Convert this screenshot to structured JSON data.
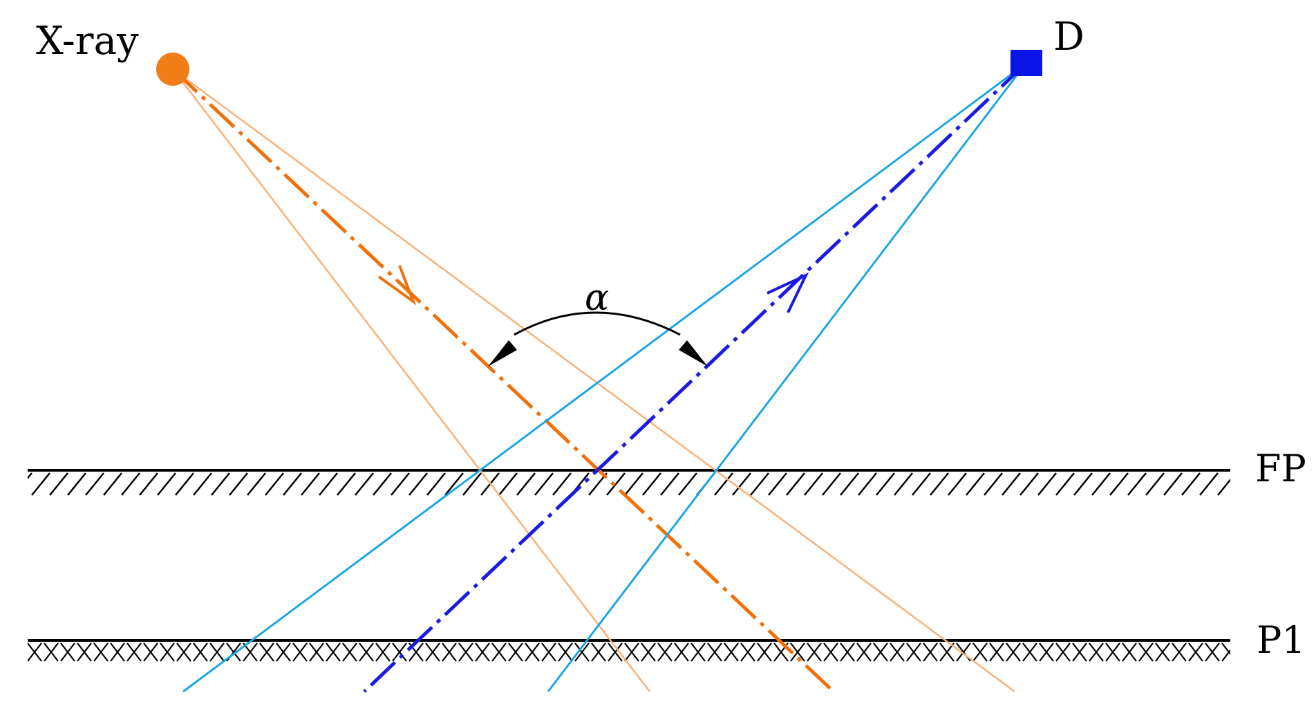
{
  "labels": {
    "source": "X-ray",
    "detector": "D",
    "angle": "α",
    "plane_focal": "FP",
    "plane_one": "P1"
  },
  "colors": {
    "source": "#f07d16",
    "source_beam": "#f0700a",
    "source_beam_edge": "#f7b27a",
    "detector": "#0a14e6",
    "detector_beam": "#1a1ae0",
    "detector_beam_edge": "#1ca6e8",
    "line": "#000000"
  },
  "icons": {
    "source": "orange-circle-source-icon",
    "detector": "blue-square-detector-icon"
  }
}
